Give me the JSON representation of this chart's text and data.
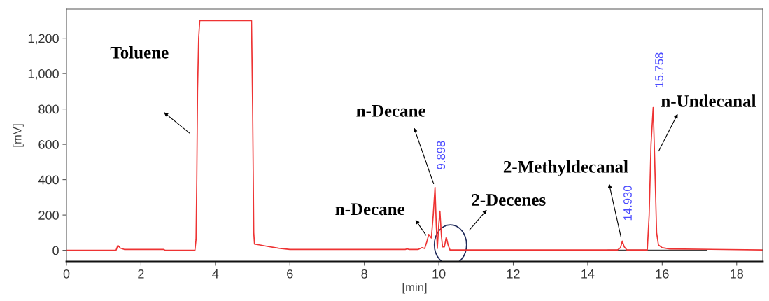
{
  "chart_data": {
    "type": "line",
    "xlabel": "[min]",
    "ylabel": "[mV]",
    "xlim": [
      0,
      18.7
    ],
    "ylim": [
      -65,
      1365
    ],
    "xticks": [
      0,
      2,
      4,
      6,
      8,
      10,
      12,
      14,
      16,
      18
    ],
    "yticks": [
      0,
      200,
      400,
      600,
      800,
      {
        "value": 1000,
        "label": "1,000"
      },
      {
        "value": 1200,
        "label": "1,200"
      }
    ],
    "grid": false,
    "marker": "none",
    "line_style": "solid",
    "series": [
      {
        "color": "#ee3333",
        "x": [
          0,
          1.33,
          1.38,
          1.45,
          1.55,
          2.6,
          2.65,
          3.45,
          3.48,
          3.5,
          3.52,
          3.55,
          3.58,
          4.97,
          5.0,
          5.03,
          5.05,
          5.2,
          5.4,
          5.7,
          6.0,
          9.1,
          9.15,
          9.2,
          9.45,
          9.55,
          9.62,
          9.68,
          9.73,
          9.8,
          9.85,
          9.898,
          9.93,
          9.96,
          10.0,
          10.03,
          10.07,
          10.1,
          10.15,
          10.2,
          10.25,
          10.3,
          14.8,
          14.88,
          14.93,
          14.98,
          15.05,
          15.6,
          15.65,
          15.7,
          15.758,
          15.8,
          15.85,
          15.9,
          16.0,
          16.2,
          18.7
        ],
        "values": [
          0,
          0,
          28,
          12,
          5,
          5,
          0,
          0,
          60,
          400,
          900,
          1200,
          1300,
          1300,
          800,
          100,
          35,
          30,
          22,
          12,
          5,
          5,
          8,
          5,
          5,
          15,
          10,
          50,
          90,
          70,
          200,
          357,
          150,
          10,
          150,
          222,
          80,
          20,
          20,
          75,
          30,
          2,
          2,
          15,
          52,
          20,
          2,
          2,
          200,
          600,
          808,
          500,
          100,
          30,
          15,
          8,
          2
        ]
      },
      {
        "color": "#404040",
        "x": [
          14.55,
          17.2
        ],
        "values": [
          0,
          0
        ]
      }
    ],
    "annotations": [
      {
        "text": "9.898",
        "x": 9.898,
        "y": 357
      },
      {
        "text": "14.930",
        "x": 14.93,
        "y": 52
      },
      {
        "text": "15.758",
        "x": 15.758,
        "y": 808
      },
      {
        "text": "Toluene",
        "x": 3.52,
        "y": 900
      },
      {
        "text": "n-Decane",
        "x": 9.898,
        "y": 357
      },
      {
        "text": "n-Decane",
        "x": 9.73,
        "y": 90
      },
      {
        "text": "2-Decenes",
        "x": 10.2,
        "y": 75
      },
      {
        "text": "2-Methyldecanal",
        "x": 14.93,
        "y": 52
      },
      {
        "text": "n-Undecanal",
        "x": 15.758,
        "y": 808
      }
    ]
  }
}
